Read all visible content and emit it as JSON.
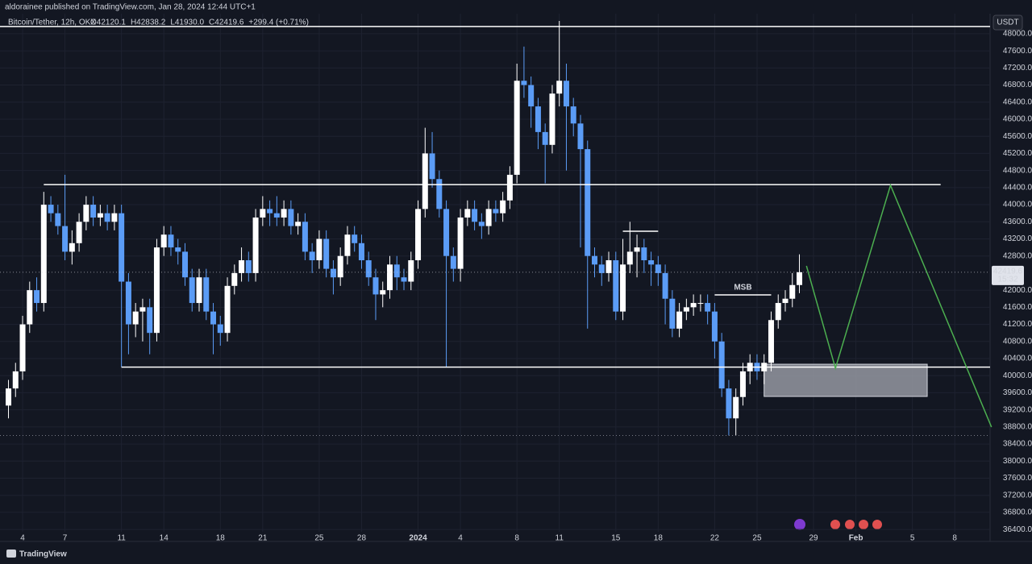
{
  "attribution": "aldorainee published on TradingView.com, Jan 28, 2024 12:44 UTC+1",
  "footer": "TradingView",
  "chart_data": {
    "type": "candlestick",
    "title": "Bitcoin/Tether, 12h, OKX",
    "legend_values": [
      "O42120.1",
      "H42838.2",
      "L41930.0",
      "C42419.6",
      "+299.4 (+0.71%)"
    ],
    "currency": "USDT",
    "countdown": "15:32",
    "up_color": "#ffffff",
    "down_color": "#5b9cf6",
    "grid": true,
    "open": [
      39300,
      39700,
      40100,
      41200,
      42000,
      41700,
      44000,
      43800,
      43500,
      42900,
      43100,
      43600,
      44000,
      43700,
      43800,
      43600,
      43800,
      42200,
      41200,
      41500,
      41600,
      41000,
      43000,
      43300,
      43000,
      42900,
      42300,
      41700,
      42300,
      41500,
      41200,
      41000,
      42100,
      42400,
      42700,
      42400,
      43700,
      43900,
      43800,
      43700,
      43900,
      43500,
      43600,
      42900,
      42700,
      43200,
      42500,
      42300,
      42800,
      43300,
      43100,
      42700,
      42300,
      41900,
      42000,
      42600,
      42300,
      42200,
      42700,
      43900,
      45200,
      44600,
      43900,
      42800,
      42500,
      43700,
      43900,
      43600,
      43500,
      43900,
      43800,
      44100,
      44700,
      46900,
      46800,
      46300,
      45700,
      45400,
      46600,
      46900,
      46300,
      45900,
      45300,
      42800,
      42600,
      42400,
      42700,
      41500,
      42600,
      42900,
      43000,
      42700,
      42600,
      42400,
      41800,
      41100,
      41500,
      41600,
      41700,
      41700,
      41500,
      40800,
      39700,
      39000,
      39500,
      40100,
      40300,
      40100,
      40300,
      41300,
      41700,
      41800,
      42120.1
    ],
    "high": [
      39900,
      40300,
      41400,
      42200,
      42300,
      44300,
      44200,
      44000,
      44700,
      43400,
      43800,
      44200,
      44200,
      44000,
      44000,
      44000,
      44000,
      42400,
      41700,
      41800,
      41800,
      43200,
      43500,
      43500,
      43200,
      43100,
      42500,
      42500,
      42500,
      41700,
      41400,
      42300,
      42600,
      43000,
      42900,
      43900,
      44200,
      44100,
      44200,
      44100,
      44100,
      43800,
      43800,
      43100,
      43400,
      43400,
      42700,
      43000,
      43500,
      43500,
      43300,
      42900,
      42500,
      42200,
      42800,
      42800,
      42500,
      42900,
      44100,
      45800,
      45700,
      44800,
      44100,
      43000,
      43900,
      44100,
      44100,
      43800,
      44100,
      44100,
      44300,
      44900,
      47300,
      47700,
      47000,
      46500,
      45900,
      46800,
      48300,
      47300,
      46500,
      46100,
      45500,
      43000,
      42800,
      42900,
      42900,
      43200,
      43600,
      43300,
      43200,
      42900,
      42800,
      42600,
      42000,
      41700,
      41800,
      41900,
      41900,
      41900,
      41700,
      41000,
      39900,
      39700,
      40300,
      40500,
      40500,
      40500,
      41500,
      41900,
      42000,
      42400,
      42838.2
    ],
    "low": [
      39000,
      39500,
      39900,
      41000,
      41500,
      41500,
      43600,
      43300,
      42700,
      42600,
      42900,
      43400,
      43500,
      43500,
      43400,
      43400,
      40200,
      40500,
      40900,
      40800,
      40500,
      40800,
      42800,
      42800,
      42600,
      42100,
      41500,
      41500,
      41300,
      40500,
      40700,
      40800,
      41900,
      42200,
      42200,
      42200,
      43500,
      43500,
      43500,
      43500,
      43300,
      43300,
      42700,
      42400,
      42500,
      42300,
      41900,
      42100,
      42600,
      42900,
      42500,
      42100,
      41300,
      41600,
      41800,
      42000,
      42000,
      42000,
      42500,
      43700,
      44400,
      43700,
      40200,
      42200,
      42200,
      43500,
      43400,
      43200,
      43300,
      43600,
      43600,
      43900,
      44500,
      46500,
      45800,
      45300,
      44500,
      45200,
      46300,
      44800,
      45600,
      43000,
      41100,
      42300,
      42100,
      42200,
      41300,
      41300,
      42400,
      42300,
      42400,
      42100,
      42100,
      41200,
      40900,
      40900,
      41300,
      41400,
      41500,
      41200,
      40400,
      39500,
      38600,
      38600,
      39300,
      39800,
      39900,
      39800,
      40100,
      41100,
      41500,
      41600,
      41930.0
    ],
    "close": [
      39700,
      40100,
      41200,
      42000,
      41700,
      44000,
      43800,
      43500,
      42900,
      43100,
      43600,
      44000,
      43700,
      43800,
      43600,
      43800,
      42200,
      41200,
      41500,
      41600,
      41000,
      43000,
      43300,
      43000,
      42900,
      42300,
      41700,
      42300,
      41500,
      41200,
      41000,
      42100,
      42400,
      42700,
      42400,
      43700,
      43900,
      43800,
      43700,
      43900,
      43500,
      43600,
      42900,
      42700,
      43200,
      42500,
      42300,
      42800,
      43300,
      43100,
      42700,
      42300,
      41900,
      42000,
      42600,
      42300,
      42200,
      42700,
      43900,
      45200,
      44600,
      43900,
      42800,
      42500,
      43700,
      43900,
      43600,
      43500,
      43900,
      43800,
      44100,
      44700,
      46900,
      46800,
      46300,
      45700,
      45400,
      46600,
      46900,
      46300,
      45900,
      45300,
      42800,
      42600,
      42400,
      42700,
      41500,
      42600,
      42900,
      43000,
      42700,
      42600,
      42400,
      41800,
      41100,
      41500,
      41600,
      41700,
      41700,
      41500,
      40800,
      39700,
      39000,
      39500,
      40100,
      40300,
      40100,
      40300,
      41300,
      41700,
      41800,
      42120.1,
      42419.6
    ],
    "xlim": [
      -1.2,
      139
    ],
    "ylim": [
      36120,
      48790
    ],
    "xticks": [
      {
        "value": 2,
        "label": "4"
      },
      {
        "value": 8,
        "label": "7"
      },
      {
        "value": 16,
        "label": "11"
      },
      {
        "value": 22,
        "label": "14"
      },
      {
        "value": 30,
        "label": "18"
      },
      {
        "value": 36,
        "label": "21"
      },
      {
        "value": 44,
        "label": "25"
      },
      {
        "value": 50,
        "label": "28"
      },
      {
        "value": 58,
        "label": "2024"
      },
      {
        "value": 64,
        "label": "4"
      },
      {
        "value": 72,
        "label": "8"
      },
      {
        "value": 78,
        "label": "11"
      },
      {
        "value": 86,
        "label": "15"
      },
      {
        "value": 92,
        "label": "18"
      },
      {
        "value": 100,
        "label": "22"
      },
      {
        "value": 106,
        "label": "25"
      },
      {
        "value": 114,
        "label": "29"
      },
      {
        "value": 120,
        "label": "Feb"
      },
      {
        "value": 128,
        "label": "5"
      },
      {
        "value": 134,
        "label": "8"
      }
    ],
    "yticks": [
      {
        "value": 48000,
        "label": "48000.0"
      },
      {
        "value": 47600,
        "label": "47600.0"
      },
      {
        "value": 47200,
        "label": "47200.0"
      },
      {
        "value": 46800,
        "label": "46800.0"
      },
      {
        "value": 46400,
        "label": "46400.0"
      },
      {
        "value": 46000,
        "label": "46000.0"
      },
      {
        "value": 45600,
        "label": "45600.0"
      },
      {
        "value": 45200,
        "label": "45200.0"
      },
      {
        "value": 44800,
        "label": "44800.0"
      },
      {
        "value": 44400,
        "label": "44400.0"
      },
      {
        "value": 44000,
        "label": "44000.0"
      },
      {
        "value": 43600,
        "label": "43600.0"
      },
      {
        "value": 43200,
        "label": "43200.0"
      },
      {
        "value": 42800,
        "label": "42800.0"
      },
      {
        "value": 42000,
        "label": "42000.0"
      },
      {
        "value": 41600,
        "label": "41600.0"
      },
      {
        "value": 41200,
        "label": "41200.0"
      },
      {
        "value": 40800,
        "label": "40800.0"
      },
      {
        "value": 40400,
        "label": "40400.0"
      },
      {
        "value": 40000,
        "label": "40000.0"
      },
      {
        "value": 39600,
        "label": "39600.0"
      },
      {
        "value": 39200,
        "label": "39200.0"
      },
      {
        "value": 38800,
        "label": "38800.0"
      },
      {
        "value": 38400,
        "label": "38400.0"
      },
      {
        "value": 38000,
        "label": "38000.0"
      },
      {
        "value": 37600,
        "label": "37600.0"
      },
      {
        "value": 37200,
        "label": "37200.0"
      },
      {
        "value": 36800,
        "label": "36800.0"
      },
      {
        "value": 36400,
        "label": "36400.0"
      }
    ],
    "drawings": {
      "levels": [
        {
          "price": 48170,
          "start": -1.2,
          "end": 139
        },
        {
          "price": 44470,
          "start": 5,
          "end": 132
        },
        {
          "price": 40200,
          "start": 16,
          "end": 139
        },
        {
          "price": 43380,
          "start": 87,
          "end": 92
        },
        {
          "price": 41890,
          "start": 100,
          "end": 108
        }
      ],
      "msb": {
        "text": "MSB",
        "price": 41890,
        "at": 104
      },
      "zone": {
        "top": 40267,
        "bottom": 39513,
        "start": 107,
        "end": 130.1,
        "color": "#9598a1"
      },
      "projection": {
        "x": [
          113,
          117.1,
          124.9,
          139.2
        ],
        "y": [
          42568,
          40173,
          44454,
          38796
        ],
        "color": "#4caf50"
      }
    }
  }
}
